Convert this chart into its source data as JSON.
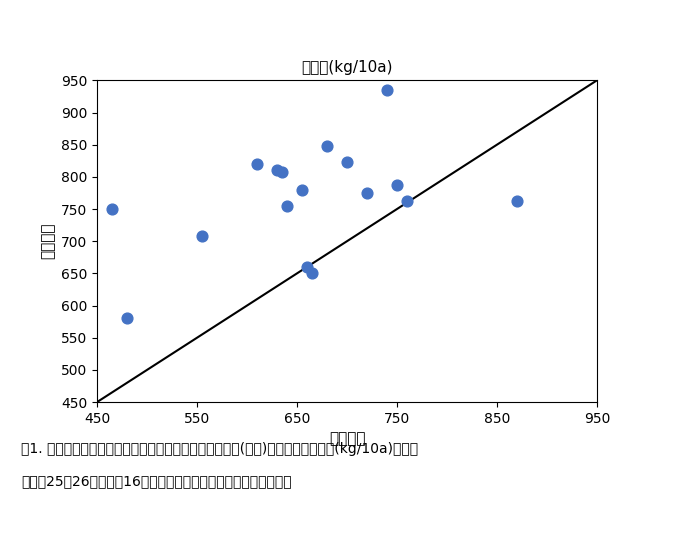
{
  "title": "玄米重(kg/10a)",
  "xlabel": "対照品種",
  "ylabel": "とよめき",
  "xlim": [
    450,
    950
  ],
  "ylim": [
    450,
    950
  ],
  "xticks": [
    450,
    550,
    650,
    750,
    850,
    950
  ],
  "yticks": [
    450,
    500,
    550,
    600,
    650,
    700,
    750,
    800,
    850,
    900,
    950
  ],
  "scatter_x": [
    465,
    480,
    555,
    610,
    630,
    635,
    640,
    655,
    660,
    665,
    680,
    700,
    720,
    740,
    750,
    760,
    870
  ],
  "scatter_y": [
    750,
    580,
    708,
    820,
    810,
    808,
    755,
    780,
    660,
    650,
    848,
    823,
    775,
    935,
    787,
    762,
    762
  ],
  "dot_color": "#4472C4",
  "dot_size": 60,
  "line_color": "black",
  "caption_line1": "図1. 奨励品種決定調査試験における「とよめき」と対照(比較)品種との玄米収量(kg/10a)の比較",
  "caption_line2": "（平成25～26年、延べ16試験地、標肖栄培と多肖栄培を含む。）",
  "background_color": "#ffffff",
  "title_fontsize": 11,
  "axis_label_fontsize": 11,
  "tick_fontsize": 10,
  "caption_fontsize": 10
}
